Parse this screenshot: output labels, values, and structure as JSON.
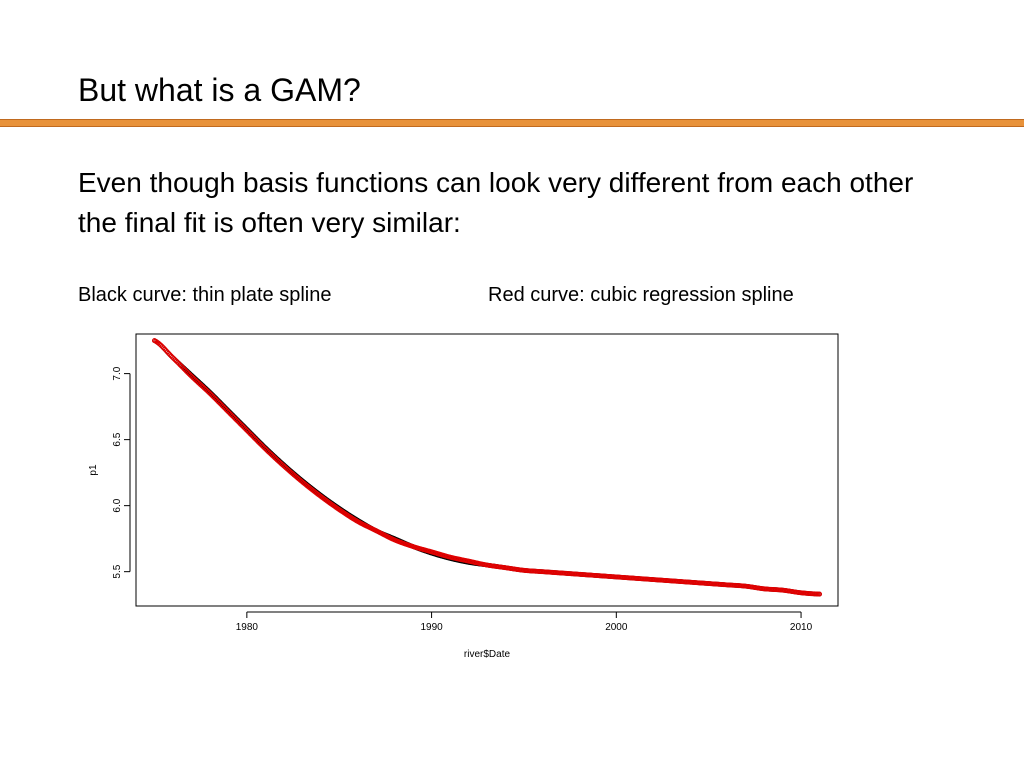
{
  "slide": {
    "title": "But what is a GAM?",
    "body": "Even though basis functions can look very different from each other the final fit is often very similar:",
    "caption_left": "Black curve: thin plate spline",
    "caption_right": "Red curve: cubic regression spline",
    "accent_color": "#e8923a"
  },
  "chart_data": {
    "type": "scatter",
    "xlabel": "river$Date",
    "ylabel": "p1",
    "xlim": [
      1974,
      2012
    ],
    "ylim": [
      5.24,
      7.3
    ],
    "xticks": [
      1980,
      1990,
      2000,
      2010
    ],
    "xtick_labels": [
      "1980",
      "1990",
      "2000",
      "2010"
    ],
    "yticks": [
      5.5,
      6.0,
      6.5,
      7.0
    ],
    "ytick_labels": [
      "5.5",
      "6.0",
      "6.5",
      "7.0"
    ],
    "grid": false,
    "series": [
      {
        "name": "thin plate spline",
        "color": "#000000",
        "x": [
          1975,
          1976,
          1977,
          1978,
          1979,
          1980,
          1981,
          1982,
          1983,
          1984,
          1985,
          1986,
          1987,
          1988,
          1989,
          1990,
          1991,
          1992,
          1993,
          1994,
          1995,
          1996,
          1997,
          1998,
          1999,
          2000,
          2001,
          2002,
          2003,
          2004,
          2005,
          2006,
          2007,
          2008,
          2009,
          2010,
          2011
        ],
        "y": [
          7.25,
          7.12,
          6.99,
          6.86,
          6.72,
          6.58,
          6.44,
          6.31,
          6.19,
          6.08,
          5.98,
          5.89,
          5.81,
          5.75,
          5.69,
          5.64,
          5.6,
          5.57,
          5.55,
          5.53,
          5.51,
          5.5,
          5.49,
          5.48,
          5.47,
          5.46,
          5.45,
          5.44,
          5.43,
          5.42,
          5.41,
          5.4,
          5.39,
          5.37,
          5.36,
          5.34,
          5.33
        ]
      },
      {
        "name": "cubic regression spline",
        "color": "#e00000",
        "x": [
          1975,
          1976,
          1977,
          1978,
          1979,
          1980,
          1981,
          1982,
          1983,
          1984,
          1985,
          1986,
          1987,
          1988,
          1989,
          1990,
          1991,
          1992,
          1993,
          1994,
          1995,
          1996,
          1997,
          1998,
          1999,
          2000,
          2001,
          2002,
          2003,
          2004,
          2005,
          2006,
          2007,
          2008,
          2009,
          2010,
          2011
        ],
        "y": [
          7.25,
          7.12,
          6.98,
          6.85,
          6.71,
          6.57,
          6.43,
          6.3,
          6.18,
          6.07,
          5.97,
          5.88,
          5.81,
          5.74,
          5.69,
          5.65,
          5.61,
          5.58,
          5.55,
          5.53,
          5.51,
          5.5,
          5.49,
          5.48,
          5.47,
          5.46,
          5.45,
          5.44,
          5.43,
          5.42,
          5.41,
          5.4,
          5.39,
          5.37,
          5.36,
          5.34,
          5.33
        ]
      }
    ]
  }
}
